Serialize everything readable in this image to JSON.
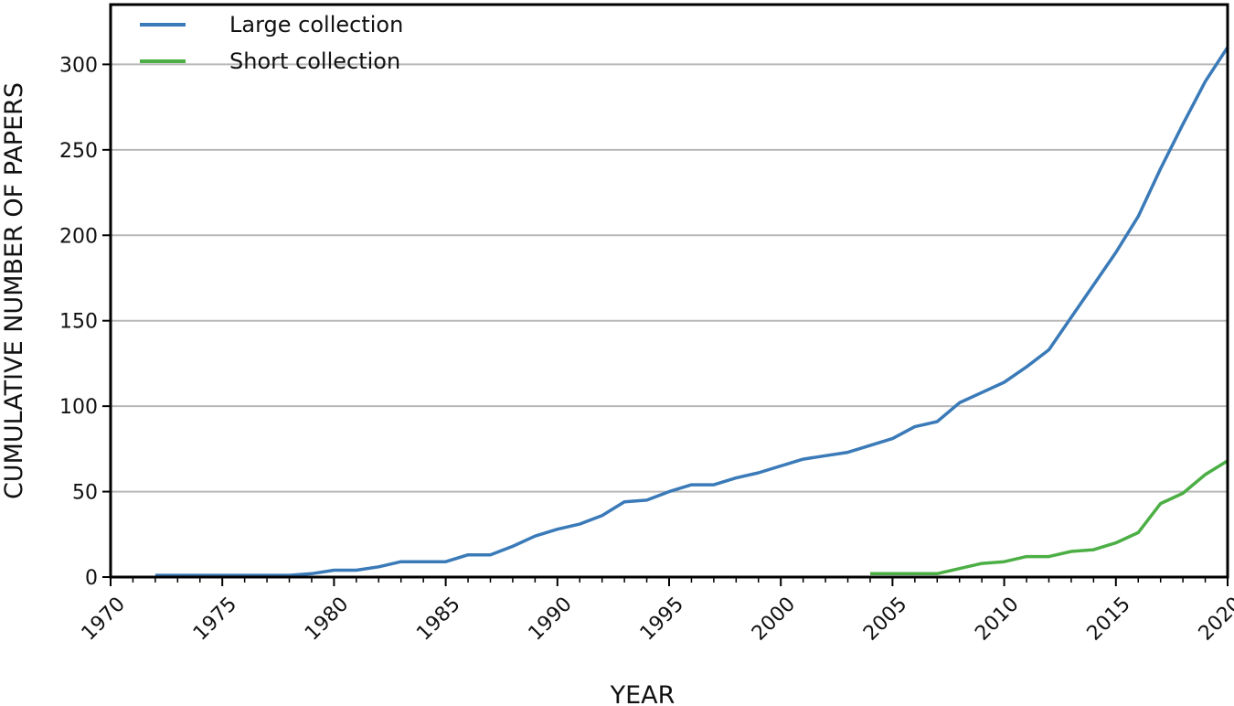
{
  "chart_data": {
    "type": "line",
    "title": "",
    "xlabel": "YEAR",
    "ylabel": "CUMULATIVE NUMBER OF PAPERS",
    "xlim": [
      1970,
      2020
    ],
    "ylim": [
      0,
      335
    ],
    "xticks": [
      1970,
      1975,
      1980,
      1985,
      1990,
      1995,
      2000,
      2005,
      2010,
      2015,
      2020
    ],
    "yticks": [
      0,
      50,
      100,
      150,
      200,
      250,
      300
    ],
    "grid": "horizontal",
    "legend_position": "top-left",
    "series": [
      {
        "name": "Large collection",
        "color": "#3a7ab8",
        "x": [
          1972,
          1973,
          1974,
          1975,
          1976,
          1977,
          1978,
          1979,
          1980,
          1981,
          1982,
          1983,
          1984,
          1985,
          1986,
          1987,
          1988,
          1989,
          1990,
          1991,
          1992,
          1993,
          1994,
          1995,
          1996,
          1997,
          1998,
          1999,
          2000,
          2001,
          2002,
          2003,
          2004,
          2005,
          2006,
          2007,
          2008,
          2009,
          2010,
          2011,
          2012,
          2013,
          2014,
          2015,
          2016,
          2017,
          2018,
          2019,
          2020
        ],
        "y": [
          1,
          1,
          1,
          1,
          1,
          1,
          1,
          2,
          4,
          4,
          6,
          9,
          9,
          9,
          13,
          13,
          18,
          24,
          28,
          31,
          36,
          44,
          45,
          50,
          54,
          54,
          58,
          61,
          65,
          69,
          71,
          73,
          77,
          81,
          88,
          91,
          102,
          108,
          114,
          123,
          133,
          152,
          171,
          190,
          211,
          239,
          265,
          290,
          310
        ]
      },
      {
        "name": "Short collection",
        "color": "#4caf45",
        "x": [
          2004,
          2005,
          2006,
          2007,
          2008,
          2009,
          2010,
          2011,
          2012,
          2013,
          2014,
          2015,
          2016,
          2017,
          2018,
          2019,
          2020
        ],
        "y": [
          2,
          2,
          2,
          2,
          5,
          8,
          9,
          12,
          12,
          15,
          16,
          20,
          26,
          43,
          49,
          60,
          68
        ]
      }
    ]
  }
}
